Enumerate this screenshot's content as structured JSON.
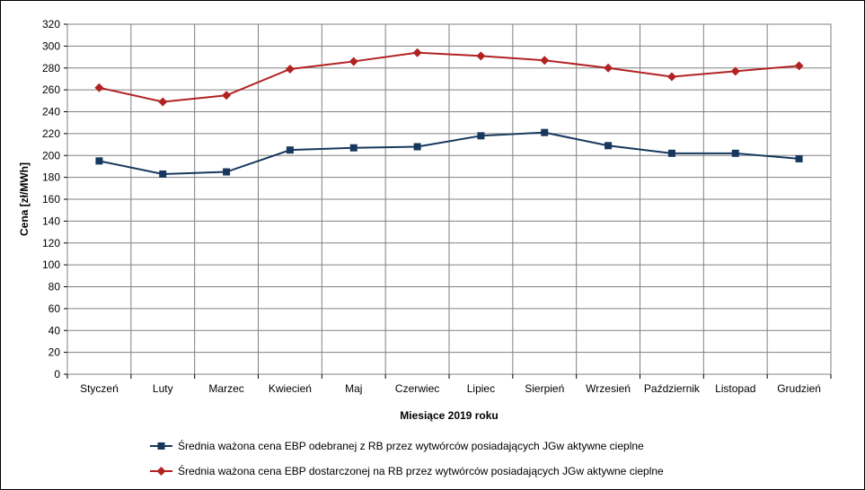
{
  "chart_data": {
    "type": "line",
    "categories": [
      "Styczeń",
      "Luty",
      "Marzec",
      "Kwiecień",
      "Maj",
      "Czerwiec",
      "Lipiec",
      "Sierpień",
      "Wrzesień",
      "Październik",
      "Listopad",
      "Grudzień"
    ],
    "series": [
      {
        "name": "Średnia ważona cena EBP odebranej z RB przez wytwórców posiadających JGw aktywne cieplne",
        "color": "#17375e",
        "marker": "square",
        "values": [
          195,
          183,
          185,
          205,
          207,
          208,
          218,
          221,
          209,
          202,
          202,
          197
        ]
      },
      {
        "name": "Średnia ważona cena EBP dostarczonej na RB przez wytwórców posiadających JGw aktywne cieplne",
        "color": "#b22222",
        "marker": "diamond",
        "values": [
          262,
          249,
          255,
          279,
          286,
          294,
          291,
          287,
          280,
          272,
          277,
          282
        ]
      }
    ],
    "xlabel": "Miesiące 2019  roku",
    "ylabel": "Cena [zł/MWh]",
    "ylim": [
      0,
      320
    ],
    "ytick_step": 20,
    "yticks": [
      "0",
      "20",
      "40",
      "60",
      "80",
      "100",
      "120",
      "140",
      "160",
      "180",
      "200",
      "220",
      "240",
      "260",
      "280",
      "300",
      "320"
    ],
    "grid": true,
    "legend_position": "bottom"
  }
}
